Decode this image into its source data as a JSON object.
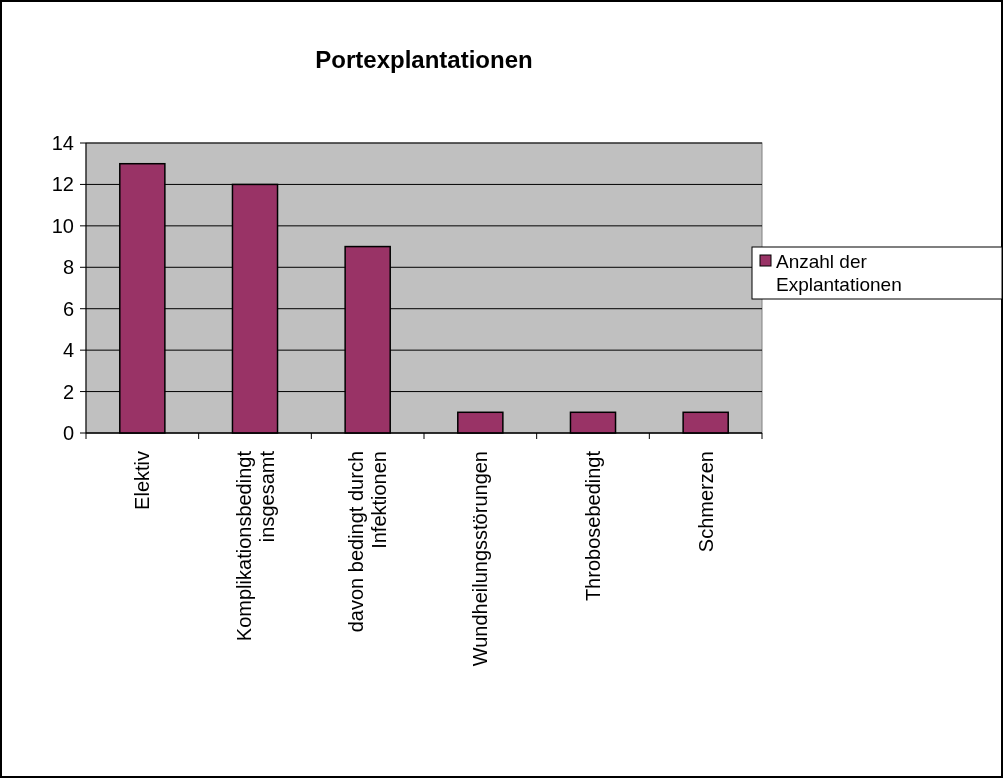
{
  "chart_data": {
    "type": "bar",
    "title": "Portexplantationen",
    "categories": [
      "Elektiv",
      "Komplikationsbedingt insgesamt",
      "davon bedingt durch Infektionen",
      "Wundheilungsstörungen",
      "Throbosebedingt",
      "Schmerzen"
    ],
    "series": [
      {
        "name": "Anzahl der Explantationen",
        "color": "#993366",
        "values": [
          13,
          12,
          9,
          1,
          1,
          1
        ]
      }
    ],
    "ylim": [
      0,
      14
    ],
    "yticks": [
      0,
      2,
      4,
      6,
      8,
      10,
      12,
      14
    ],
    "grid": "y",
    "legend": "right"
  }
}
